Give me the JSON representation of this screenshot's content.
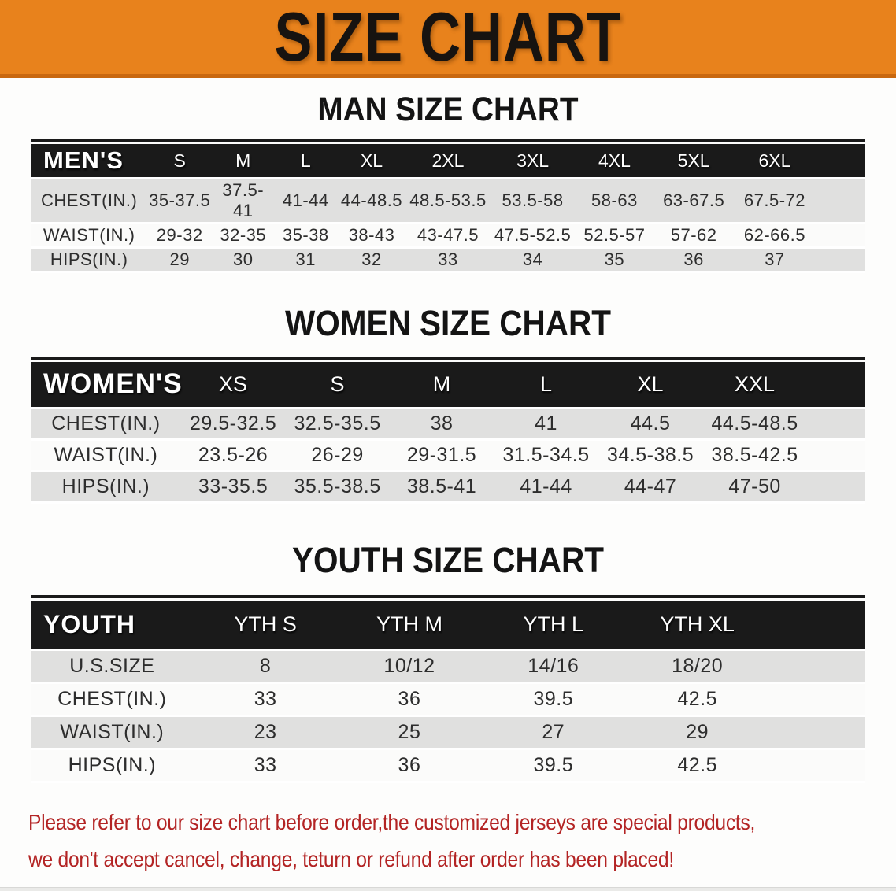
{
  "colors": {
    "banner_orange": "#E8821C",
    "banner_edge_orange": "#C9680F",
    "header_black": "#1A1A1A",
    "row_gray": "#E0E0DF",
    "row_white": "#FBFBFA",
    "disclaimer_red": "#B32424"
  },
  "banner": {
    "title": "SIZE CHART"
  },
  "sections": [
    {
      "id": "mens",
      "title": "MAN SIZE CHART",
      "header_label": "MEN'S",
      "columns": [
        "S",
        "M",
        "L",
        "XL",
        "2XL",
        "3XL",
        "4XL",
        "5XL",
        "6XL"
      ],
      "rows": [
        {
          "label": "CHEST(IN.)",
          "values": [
            "35-37.5",
            "37.5-41",
            "41-44",
            "44-48.5",
            "48.5-53.5",
            "53.5-58",
            "58-63",
            "63-67.5",
            "67.5-72"
          ]
        },
        {
          "label": "WAIST(IN.)",
          "values": [
            "29-32",
            "32-35",
            "35-38",
            "38-43",
            "43-47.5",
            "47.5-52.5",
            "52.5-57",
            "57-62",
            "62-66.5"
          ]
        },
        {
          "label": "HIPS(IN.)",
          "values": [
            "29",
            "30",
            "31",
            "32",
            "33",
            "34",
            "35",
            "36",
            "37"
          ]
        }
      ]
    },
    {
      "id": "womens",
      "title": "WOMEN SIZE CHART",
      "header_label": "WOMEN'S",
      "columns": [
        "XS",
        "S",
        "M",
        "L",
        "XL",
        "XXL"
      ],
      "rows": [
        {
          "label": "CHEST(IN.)",
          "values": [
            "29.5-32.5",
            "32.5-35.5",
            "38",
            "41",
            "44.5",
            "44.5-48.5"
          ]
        },
        {
          "label": "WAIST(IN.)",
          "values": [
            "23.5-26",
            "26-29",
            "29-31.5",
            "31.5-34.5",
            "34.5-38.5",
            "38.5-42.5"
          ]
        },
        {
          "label": "HIPS(IN.)",
          "values": [
            "33-35.5",
            "35.5-38.5",
            "38.5-41",
            "41-44",
            "44-47",
            "47-50"
          ]
        }
      ]
    },
    {
      "id": "youth",
      "title": "YOUTH SIZE CHART",
      "header_label": "YOUTH",
      "columns": [
        "YTH S",
        "YTH M",
        "YTH L",
        "YTH XL"
      ],
      "rows": [
        {
          "label": "U.S.SIZE",
          "values": [
            "8",
            "10/12",
            "14/16",
            "18/20"
          ]
        },
        {
          "label": "CHEST(IN.)",
          "values": [
            "33",
            "36",
            "39.5",
            "42.5"
          ]
        },
        {
          "label": "WAIST(IN.)",
          "values": [
            "23",
            "25",
            "27",
            "29"
          ]
        },
        {
          "label": "HIPS(IN.)",
          "values": [
            "33",
            "36",
            "39.5",
            "42.5"
          ]
        }
      ]
    }
  ],
  "disclaimer": {
    "line1": "Please refer to our size chart before order,the customized jerseys are special products,",
    "line2": "we don't accept cancel, change, teturn or refund after order has been placed!"
  }
}
